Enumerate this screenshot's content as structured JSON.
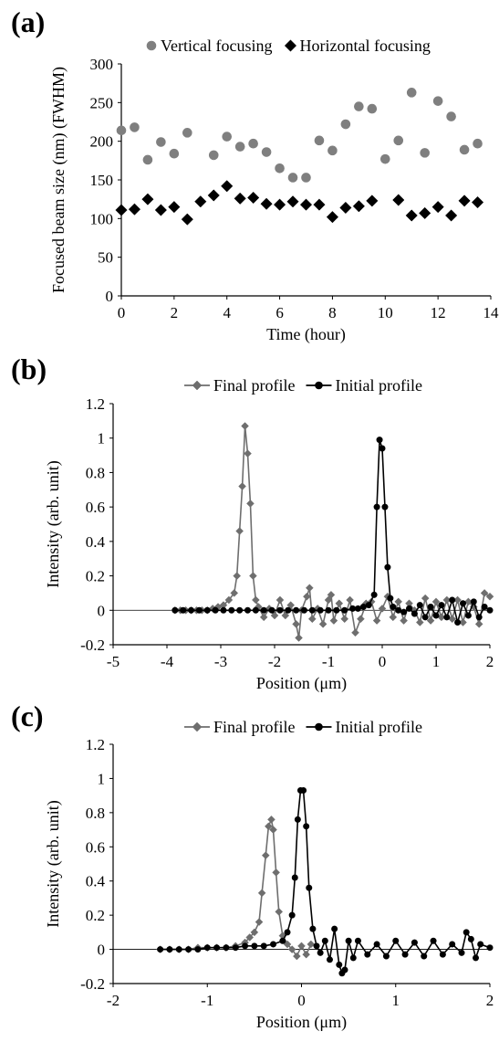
{
  "chart_data": [
    {
      "panel_label": "(a)",
      "type": "scatter",
      "xlabel": "Time (hour)",
      "ylabel": "Focused beam size (nm) (FWHM)",
      "xlim": [
        0,
        14
      ],
      "ylim": [
        0,
        300
      ],
      "xticks": [
        0,
        2,
        4,
        6,
        8,
        10,
        12,
        14
      ],
      "yticks": [
        0,
        50,
        100,
        150,
        200,
        250,
        300
      ],
      "legend": "top",
      "grid": false,
      "series": [
        {
          "name": "Vertical focusing",
          "marker": "circle",
          "color": "#7f7f7f",
          "x": [
            0,
            0.5,
            1,
            1.5,
            2,
            2.5,
            3.5,
            4,
            4.5,
            5,
            5.5,
            6,
            6.5,
            7,
            7.5,
            8,
            8.5,
            9,
            9.5,
            10,
            10.5,
            11,
            11.5,
            12,
            12.5,
            13,
            13.5
          ],
          "y": [
            214,
            218,
            176,
            199,
            184,
            211,
            182,
            206,
            193,
            197,
            186,
            165,
            153,
            153,
            201,
            188,
            222,
            245,
            242,
            177,
            201,
            263,
            185,
            252,
            232,
            189,
            197
          ]
        },
        {
          "name": "Horizontal focusing",
          "marker": "diamond",
          "color": "#000000",
          "x": [
            0,
            0.5,
            1,
            1.5,
            2,
            2.5,
            3,
            3.5,
            4,
            4.5,
            5,
            5.5,
            6,
            6.5,
            7,
            7.5,
            8,
            8.5,
            9,
            9.5,
            10.5,
            11,
            11.5,
            12,
            12.5,
            13,
            13.5
          ],
          "y": [
            111,
            112,
            125,
            111,
            115,
            99,
            122,
            130,
            142,
            126,
            127,
            119,
            118,
            122,
            118,
            118,
            102,
            114,
            116,
            123,
            124,
            104,
            107,
            115,
            104,
            123,
            121
          ]
        }
      ]
    },
    {
      "panel_label": "(b)",
      "type": "line",
      "xlabel": "Position (μm)",
      "ylabel": "Intensity (arb. unit)",
      "xlim": [
        -5,
        2
      ],
      "ylim": [
        -0.2,
        1.2
      ],
      "xticks": [
        -5,
        -4,
        -3,
        -2,
        -1,
        0,
        1,
        2
      ],
      "yticks": [
        -0.2,
        0,
        0.2,
        0.4,
        0.6,
        0.8,
        1,
        1.2
      ],
      "legend": "top",
      "grid": false,
      "series": [
        {
          "name": "Final profile",
          "marker": "diamond",
          "color": "#6e6e6e",
          "x": [
            -3.85,
            -3.75,
            -3.65,
            -3.55,
            -3.45,
            -3.35,
            -3.25,
            -3.15,
            -3.05,
            -2.95,
            -2.85,
            -2.75,
            -2.7,
            -2.65,
            -2.6,
            -2.55,
            -2.5,
            -2.45,
            -2.4,
            -2.35,
            -2.3,
            -2.2,
            -2.1,
            -2.0,
            -1.9,
            -1.8,
            -1.7,
            -1.6,
            -1.55,
            -1.5,
            -1.4,
            -1.35,
            -1.3,
            -1.2,
            -1.1,
            -1.0,
            -0.95,
            -0.9,
            -0.8,
            -0.7,
            -0.6,
            -0.5,
            -0.4,
            -0.3,
            -0.2,
            -0.1,
            0.0,
            0.1,
            0.2,
            0.3,
            0.4,
            0.5,
            0.6,
            0.7,
            0.8,
            0.9,
            1.0,
            1.1,
            1.2,
            1.3,
            1.4,
            1.5,
            1.6,
            1.7,
            1.8,
            1.9,
            2.0
          ],
          "y": [
            0.0,
            0.0,
            0.0,
            0.0,
            0.0,
            0.0,
            0.0,
            0.01,
            0.02,
            0.03,
            0.06,
            0.1,
            0.2,
            0.46,
            0.72,
            1.07,
            0.91,
            0.62,
            0.2,
            0.06,
            0.02,
            -0.04,
            0.01,
            -0.03,
            0.06,
            -0.03,
            0.03,
            -0.08,
            -0.16,
            0.0,
            0.08,
            0.13,
            -0.05,
            0.01,
            -0.08,
            0.06,
            0.09,
            -0.06,
            0.04,
            -0.05,
            0.06,
            -0.13,
            -0.05,
            0.04,
            0.05,
            -0.06,
            0.01,
            0.08,
            -0.04,
            0.05,
            -0.06,
            0.04,
            0.0,
            -0.07,
            0.07,
            -0.06,
            0.05,
            -0.04,
            0.06,
            -0.05,
            0.06,
            -0.07,
            0.05,
            0.02,
            -0.08,
            0.1,
            0.08
          ]
        },
        {
          "name": "Initial profile",
          "marker": "circle",
          "color": "#000000",
          "x": [
            -3.85,
            -3.7,
            -3.55,
            -3.4,
            -3.25,
            -3.1,
            -2.95,
            -2.8,
            -2.65,
            -2.5,
            -2.35,
            -2.2,
            -2.05,
            -1.9,
            -1.75,
            -1.6,
            -1.45,
            -1.3,
            -1.15,
            -1.0,
            -0.85,
            -0.7,
            -0.55,
            -0.45,
            -0.35,
            -0.25,
            -0.15,
            -0.1,
            -0.05,
            0.0,
            0.05,
            0.1,
            0.15,
            0.2,
            0.3,
            0.4,
            0.5,
            0.6,
            0.7,
            0.8,
            0.9,
            1.0,
            1.1,
            1.2,
            1.3,
            1.4,
            1.5,
            1.6,
            1.7,
            1.8,
            1.9,
            2.0
          ],
          "y": [
            0.0,
            0.0,
            0.0,
            0.0,
            0.0,
            0.0,
            0.0,
            0.0,
            0.0,
            0.0,
            0.0,
            0.0,
            0.0,
            0.0,
            0.0,
            0.0,
            0.0,
            0.0,
            0.0,
            0.0,
            0.0,
            0.0,
            0.01,
            0.01,
            0.02,
            0.03,
            0.09,
            0.6,
            0.99,
            0.94,
            0.6,
            0.25,
            0.07,
            0.02,
            0.0,
            -0.01,
            0.01,
            -0.02,
            0.03,
            -0.04,
            0.02,
            -0.03,
            0.03,
            -0.04,
            0.06,
            -0.07,
            0.04,
            -0.03,
            0.05,
            -0.04,
            0.02,
            0.0
          ]
        }
      ]
    },
    {
      "panel_label": "(c)",
      "type": "line",
      "xlabel": "Position (μm)",
      "ylabel": "Intensity (arb. unit)",
      "xlim": [
        -2,
        2
      ],
      "ylim": [
        -0.2,
        1.2
      ],
      "xticks": [
        -2,
        -1,
        0,
        1,
        2
      ],
      "yticks": [
        -0.2,
        0,
        0.2,
        0.4,
        0.6,
        0.8,
        1,
        1.2
      ],
      "legend": "top",
      "grid": false,
      "series": [
        {
          "name": "Final profile",
          "marker": "diamond",
          "color": "#6e6e6e",
          "x": [
            -1.5,
            -1.4,
            -1.3,
            -1.2,
            -1.1,
            -1.0,
            -0.9,
            -0.8,
            -0.7,
            -0.6,
            -0.55,
            -0.5,
            -0.45,
            -0.42,
            -0.38,
            -0.35,
            -0.32,
            -0.3,
            -0.27,
            -0.24,
            -0.2,
            -0.15,
            -0.1,
            -0.05,
            0.0,
            0.05,
            0.1
          ],
          "y": [
            0.0,
            0.0,
            0.0,
            0.0,
            0.01,
            0.01,
            0.01,
            0.01,
            0.02,
            0.04,
            0.07,
            0.1,
            0.16,
            0.33,
            0.55,
            0.72,
            0.76,
            0.7,
            0.45,
            0.22,
            0.08,
            0.03,
            0.0,
            -0.04,
            0.02,
            -0.03,
            0.03
          ]
        },
        {
          "name": "Initial profile",
          "marker": "circle",
          "color": "#000000",
          "x": [
            -1.5,
            -1.4,
            -1.3,
            -1.2,
            -1.1,
            -1.0,
            -0.9,
            -0.8,
            -0.7,
            -0.6,
            -0.5,
            -0.4,
            -0.3,
            -0.2,
            -0.15,
            -0.1,
            -0.07,
            -0.04,
            -0.01,
            0.02,
            0.05,
            0.08,
            0.12,
            0.16,
            0.2,
            0.25,
            0.3,
            0.35,
            0.4,
            0.43,
            0.46,
            0.5,
            0.55,
            0.6,
            0.7,
            0.8,
            0.9,
            1.0,
            1.1,
            1.2,
            1.3,
            1.4,
            1.5,
            1.6,
            1.7,
            1.75,
            1.8,
            1.85,
            1.9,
            2.0
          ],
          "y": [
            0.0,
            0.0,
            0.0,
            0.0,
            0.0,
            0.01,
            0.01,
            0.01,
            0.01,
            0.02,
            0.02,
            0.02,
            0.03,
            0.05,
            0.1,
            0.2,
            0.42,
            0.76,
            0.93,
            0.93,
            0.72,
            0.36,
            0.12,
            0.02,
            -0.02,
            0.05,
            -0.06,
            0.12,
            -0.09,
            -0.14,
            -0.12,
            0.05,
            -0.05,
            0.05,
            -0.03,
            0.03,
            -0.04,
            0.05,
            -0.03,
            0.04,
            -0.04,
            0.05,
            -0.03,
            0.03,
            -0.02,
            0.1,
            0.06,
            -0.05,
            0.03,
            0.01
          ]
        }
      ]
    }
  ]
}
